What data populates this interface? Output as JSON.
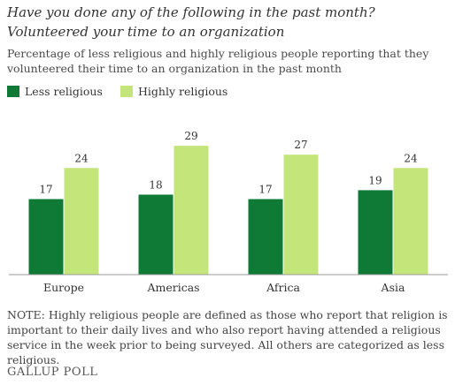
{
  "header": {
    "title": "Have you done any of the following in the past month?",
    "subtitle": "Volunteered your time to an organization",
    "description": "Percentage of less religious and highly religious people reporting that they volunteered their time to an organization in the past month"
  },
  "colors": {
    "less_religious": "#0f7a35",
    "highly_religious": "#c4e57a",
    "axis": "#9a9a9a"
  },
  "chart_data": {
    "type": "bar",
    "title": "Volunteered your time to an organization",
    "xlabel": "",
    "ylabel": "",
    "categories": [
      "Europe",
      "Americas",
      "Africa",
      "Asia"
    ],
    "series": [
      {
        "name": "Less religious",
        "values": [
          17,
          18,
          17,
          19
        ]
      },
      {
        "name": "Highly religious",
        "values": [
          24,
          29,
          27,
          24
        ]
      }
    ],
    "ylim": [
      0,
      32
    ],
    "grid": false,
    "legend": "top-left",
    "data_labels": true
  },
  "note": "NOTE: Highly religious people are defined as those who report that religion is important to their daily lives and who also report having attended a religious service in the week prior to being surveyed. All others are categorized as less religious.",
  "footer": {
    "source": "GALLUP POLL"
  }
}
